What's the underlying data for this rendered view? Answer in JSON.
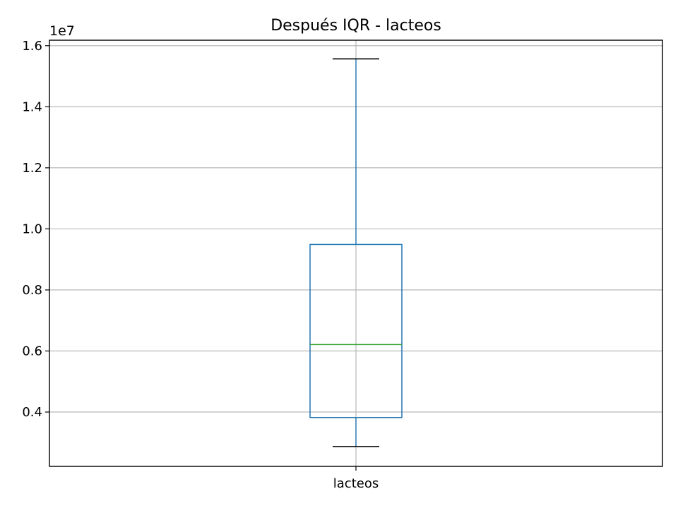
{
  "chart_data": {
    "type": "box",
    "title": "Después IQR - lacteos",
    "categories": [
      "lacteos"
    ],
    "ylabel": "",
    "xlabel": "",
    "y_offset_label": "1e7",
    "y_scale": 10000000,
    "ylim": [
      2220000,
      16180000
    ],
    "yticks": [
      0.4,
      0.6,
      0.8,
      1.0,
      1.2,
      1.4,
      1.6
    ],
    "ytick_labels": [
      "0.4",
      "0.6",
      "0.8",
      "1.0",
      "1.2",
      "1.4",
      "1.6"
    ],
    "grid": true,
    "boxes": [
      {
        "category": "lacteos",
        "whisker_low": 2870000,
        "q1": 3820000,
        "median": 6210000,
        "q3": 9490000,
        "whisker_high": 15570000
      }
    ],
    "colors": {
      "box": "#1f77b4",
      "median": "#2ca02c",
      "caps": "#000000",
      "grid": "#b0b0b0"
    }
  }
}
